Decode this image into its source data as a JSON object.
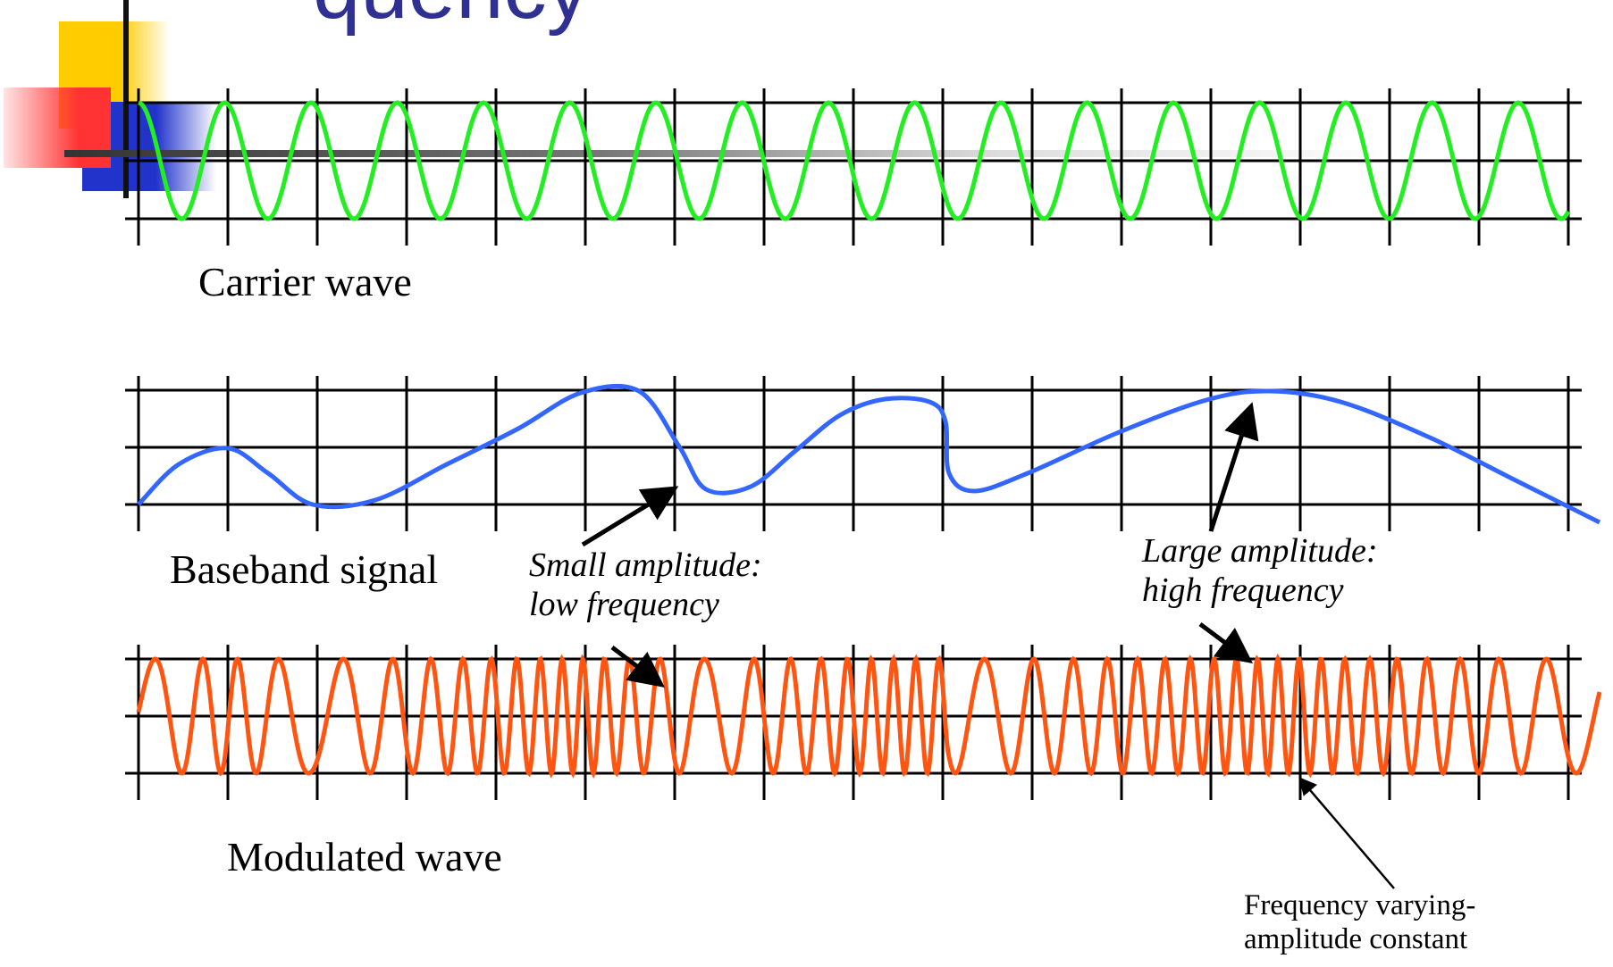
{
  "title_fragment": "quency",
  "labels": {
    "carrier": "Carrier wave",
    "baseband": "Baseband signal",
    "modulated": "Modulated wave"
  },
  "annotations": {
    "small_line1": "Small amplitude:",
    "small_line2": "low frequency",
    "large_line1": "Large amplitude:",
    "large_line2": "high frequency",
    "note_line1": "Frequency varying-",
    "note_line2": "amplitude constant"
  },
  "colors": {
    "title": "#2e3192",
    "carrier": "#22ee22",
    "baseband": "#3366ff",
    "modulated": "#ff5511",
    "grid": "#000000",
    "deco_yellow": "#ffcc00",
    "deco_red": "#ff3333",
    "deco_blue": "#2233cc"
  },
  "icons": [
    "square-deco-icon"
  ]
}
